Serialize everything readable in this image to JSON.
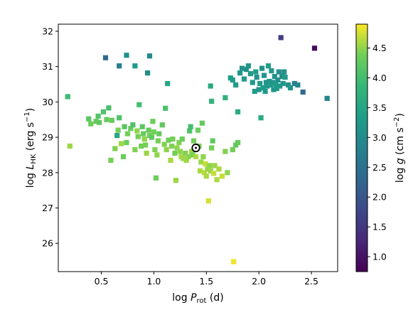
{
  "chart_data": {
    "type": "scatter",
    "title": "",
    "xlabel": "log P_rot (d)",
    "ylabel": "log L_HK (erg s^-1)",
    "xlim": [
      0.09,
      2.75
    ],
    "ylim": [
      25.2,
      32.2
    ],
    "xticks": [
      0.5,
      1.0,
      1.5,
      2.0,
      2.5
    ],
    "xtick_labels": [
      "0.5",
      "1.0",
      "1.5",
      "2.0",
      "2.5"
    ],
    "yticks": [
      26,
      27,
      28,
      29,
      30,
      31,
      32
    ],
    "ytick_labels": [
      "26",
      "27",
      "28",
      "29",
      "30",
      "31",
      "32"
    ],
    "grid": false,
    "legend": "none",
    "colorbar": {
      "label": "log g (cm s^-2)",
      "range": [
        0.75,
        4.9
      ],
      "ticks": [
        1.0,
        1.5,
        2.0,
        2.5,
        3.0,
        3.5,
        4.0,
        4.5
      ],
      "tick_labels": [
        "1.0",
        "1.5",
        "2.0",
        "2.5",
        "3.0",
        "3.5",
        "4.0",
        "4.5"
      ],
      "colormap": "viridis"
    },
    "sun": {
      "x": 1.4,
      "y": 28.7
    },
    "points": [
      [
        0.18,
        30.15,
        3.95
      ],
      [
        0.2,
        28.75,
        4.55
      ],
      [
        0.38,
        29.52,
        4.2
      ],
      [
        0.4,
        29.38,
        4.35
      ],
      [
        0.45,
        29.45,
        4.3
      ],
      [
        0.47,
        29.6,
        4.15
      ],
      [
        0.48,
        29.42,
        4.25
      ],
      [
        0.52,
        29.72,
        4.1
      ],
      [
        0.55,
        29.5,
        4.3
      ],
      [
        0.57,
        29.83,
        4.05
      ],
      [
        0.59,
        28.35,
        4.4
      ],
      [
        0.6,
        29.48,
        4.3
      ],
      [
        0.63,
        28.68,
        4.45
      ],
      [
        0.65,
        29.05,
        3.5
      ],
      [
        0.66,
        29.2,
        4.4
      ],
      [
        0.67,
        29.55,
        4.1
      ],
      [
        0.69,
        28.82,
        4.55
      ],
      [
        0.71,
        28.45,
        4.35
      ],
      [
        0.72,
        29.3,
        4.2
      ],
      [
        0.74,
        28.85,
        4.35
      ],
      [
        0.75,
        29.1,
        4.4
      ],
      [
        0.78,
        29.25,
        4.3
      ],
      [
        0.8,
        29.35,
        4.1
      ],
      [
        0.82,
        28.65,
        4.45
      ],
      [
        0.84,
        29.18,
        4.5
      ],
      [
        0.85,
        29.02,
        4.4
      ],
      [
        0.86,
        29.92,
        4.0
      ],
      [
        0.88,
        28.75,
        4.4
      ],
      [
        0.89,
        29.3,
        4.2
      ],
      [
        0.9,
        29.1,
        4.3
      ],
      [
        0.91,
        28.95,
        4.5
      ],
      [
        0.92,
        28.78,
        4.4
      ],
      [
        0.93,
        28.55,
        4.55
      ],
      [
        0.95,
        29.2,
        4.3
      ],
      [
        0.96,
        29.05,
        4.4
      ],
      [
        0.98,
        29.0,
        4.25
      ],
      [
        0.99,
        29.45,
        4.35
      ],
      [
        1.0,
        29.15,
        4.4
      ],
      [
        1.01,
        28.65,
        4.45
      ],
      [
        1.02,
        27.85,
        4.35
      ],
      [
        1.03,
        28.5,
        4.5
      ],
      [
        1.04,
        28.9,
        4.4
      ],
      [
        1.05,
        29.1,
        4.3
      ],
      [
        1.08,
        29.35,
        4.25
      ],
      [
        1.1,
        28.8,
        4.45
      ],
      [
        1.11,
        29.82,
        4.05
      ],
      [
        1.12,
        28.65,
        4.5
      ],
      [
        1.14,
        28.92,
        4.35
      ],
      [
        1.16,
        28.35,
        4.6
      ],
      [
        1.17,
        28.75,
        4.45
      ],
      [
        1.18,
        28.95,
        4.4
      ],
      [
        1.2,
        28.55,
        4.4
      ],
      [
        1.21,
        27.78,
        4.55
      ],
      [
        1.22,
        28.7,
        4.5
      ],
      [
        1.24,
        28.85,
        4.45
      ],
      [
        1.25,
        28.6,
        4.5
      ],
      [
        1.26,
        28.45,
        4.6
      ],
      [
        1.27,
        28.95,
        4.35
      ],
      [
        1.28,
        28.4,
        4.55
      ],
      [
        1.3,
        28.55,
        4.45
      ],
      [
        1.31,
        28.35,
        4.55
      ],
      [
        1.33,
        28.45,
        4.5
      ],
      [
        1.34,
        29.18,
        4.1
      ],
      [
        1.35,
        29.3,
        4.0
      ],
      [
        1.36,
        28.6,
        4.55
      ],
      [
        1.37,
        28.5,
        4.4
      ],
      [
        1.38,
        28.9,
        4.4
      ],
      [
        1.4,
        28.45,
        4.6
      ],
      [
        1.42,
        29.2,
        4.35
      ],
      [
        1.43,
        28.75,
        4.45
      ],
      [
        1.44,
        28.05,
        4.6
      ],
      [
        1.45,
        28.3,
        4.55
      ],
      [
        1.46,
        29.4,
        4.3
      ],
      [
        1.47,
        28.45,
        4.5
      ],
      [
        1.48,
        28.0,
        4.65
      ],
      [
        1.49,
        28.25,
        4.7
      ],
      [
        1.5,
        27.9,
        4.6
      ],
      [
        1.51,
        28.1,
        4.55
      ],
      [
        1.52,
        27.2,
        4.75
      ],
      [
        1.53,
        28.2,
        4.5
      ],
      [
        1.54,
        28.05,
        4.55
      ],
      [
        1.55,
        28.7,
        4.4
      ],
      [
        1.56,
        28.9,
        4.25
      ],
      [
        1.57,
        27.98,
        4.7
      ],
      [
        1.58,
        28.2,
        4.55
      ],
      [
        1.6,
        27.8,
        4.6
      ],
      [
        1.62,
        28.1,
        4.6
      ],
      [
        1.65,
        27.9,
        4.7
      ],
      [
        1.68,
        28.6,
        4.45
      ],
      [
        1.7,
        28.0,
        4.5
      ],
      [
        1.75,
        28.65,
        4.4
      ],
      [
        1.76,
        25.48,
        4.85
      ],
      [
        1.78,
        28.78,
        4.25
      ],
      [
        1.8,
        28.85,
        4.3
      ],
      [
        1.55,
        30.02,
        3.8
      ],
      [
        1.54,
        30.45,
        3.6
      ],
      [
        1.68,
        30.12,
        3.75
      ],
      [
        1.73,
        30.68,
        3.4
      ],
      [
        1.75,
        30.62,
        3.3
      ],
      [
        1.78,
        30.48,
        3.3
      ],
      [
        1.8,
        29.72,
        3.6
      ],
      [
        1.82,
        30.82,
        3.2
      ],
      [
        1.84,
        30.95,
        3.2
      ],
      [
        1.86,
        30.65,
        3.25
      ],
      [
        1.88,
        30.92,
        3.1
      ],
      [
        1.9,
        31.02,
        3.2
      ],
      [
        1.92,
        30.8,
        3.3
      ],
      [
        1.94,
        30.55,
        3.25
      ],
      [
        1.96,
        30.3,
        3.3
      ],
      [
        1.97,
        30.85,
        3.3
      ],
      [
        1.98,
        30.7,
        3.15
      ],
      [
        2.0,
        30.35,
        3.2
      ],
      [
        2.01,
        30.52,
        3.3
      ],
      [
        2.02,
        29.55,
        3.6
      ],
      [
        2.03,
        30.95,
        3.1
      ],
      [
        2.04,
        30.4,
        3.3
      ],
      [
        2.05,
        30.75,
        3.2
      ],
      [
        2.06,
        30.3,
        3.25
      ],
      [
        2.07,
        30.55,
        3.15
      ],
      [
        2.08,
        30.45,
        3.2
      ],
      [
        2.09,
        31.02,
        3.3
      ],
      [
        2.1,
        30.58,
        3.2
      ],
      [
        2.11,
        30.48,
        3.3
      ],
      [
        2.12,
        30.88,
        3.25
      ],
      [
        2.13,
        30.55,
        3.2
      ],
      [
        2.14,
        30.35,
        3.2
      ],
      [
        2.15,
        30.72,
        3.1
      ],
      [
        2.16,
        30.5,
        3.3
      ],
      [
        2.17,
        30.38,
        3.25
      ],
      [
        2.18,
        30.62,
        3.1
      ],
      [
        2.19,
        30.85,
        3.05
      ],
      [
        2.2,
        30.45,
        3.2
      ],
      [
        2.21,
        31.82,
        1.6
      ],
      [
        2.22,
        30.72,
        3.0
      ],
      [
        2.23,
        30.52,
        3.2
      ],
      [
        2.24,
        30.85,
        3.1
      ],
      [
        2.25,
        30.7,
        3.3
      ],
      [
        2.28,
        30.48,
        3.1
      ],
      [
        2.3,
        30.4,
        3.2
      ],
      [
        2.34,
        30.52,
        2.7
      ],
      [
        2.37,
        30.48,
        2.9
      ],
      [
        2.42,
        30.28,
        2.4
      ],
      [
        2.53,
        31.52,
        0.9
      ],
      [
        2.65,
        30.1,
        2.9
      ],
      [
        0.54,
        31.25,
        2.3
      ],
      [
        0.67,
        31.02,
        2.7
      ],
      [
        0.74,
        31.32,
        3.1
      ],
      [
        0.82,
        31.02,
        3.25
      ],
      [
        0.94,
        30.82,
        3.05
      ],
      [
        0.96,
        31.3,
        2.95
      ],
      [
        1.13,
        30.52,
        3.5
      ]
    ]
  }
}
